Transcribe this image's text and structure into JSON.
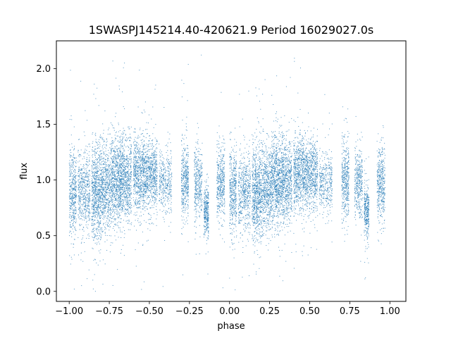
{
  "chart_data": {
    "type": "scatter",
    "title": "1SWASPJ145214.40-420621.9 Period 16029027.0s",
    "xlabel": "phase",
    "ylabel": "flux",
    "xlim": [
      -1.08,
      1.1
    ],
    "ylim": [
      -0.09,
      2.25
    ],
    "x_ticks": [
      -1.0,
      -0.75,
      -0.5,
      -0.25,
      0.0,
      0.25,
      0.5,
      0.75,
      1.0
    ],
    "x_tick_labels": [
      "−1.00",
      "−0.75",
      "−0.50",
      "−0.25",
      "0.00",
      "0.25",
      "0.50",
      "0.75",
      "1.00"
    ],
    "y_ticks": [
      0.0,
      0.5,
      1.0,
      1.5,
      2.0
    ],
    "y_tick_labels": [
      "0.0",
      "0.5",
      "1.0",
      "1.5",
      "2.0"
    ],
    "grid": false,
    "marker_color": "#1f77b4",
    "series": [
      {
        "x_range": [
          -1.0,
          1.0
        ],
        "y_range": [
          0.0,
          2.15
        ],
        "point_count_approx": 14000,
        "mirrored_about_phase_zero_shift": 1.0,
        "phase_clusters": [
          {
            "phase_start": -1.0,
            "phase_end": -0.955,
            "flux_center": 0.9,
            "flux_spread": 0.19,
            "weight": 0.8
          },
          {
            "phase_start": -0.945,
            "phase_end": -0.87,
            "flux_center": 0.9,
            "flux_spread": 0.18,
            "weight": 1.0
          },
          {
            "phase_start": -0.86,
            "phase_end": -0.8,
            "flux_center": 0.88,
            "flux_spread": 0.22,
            "weight": 1.4
          },
          {
            "phase_start": -0.8,
            "phase_end": -0.74,
            "flux_center": 0.93,
            "flux_spread": 0.2,
            "weight": 1.1
          },
          {
            "phase_start": -0.74,
            "phase_end": -0.66,
            "flux_center": 1.0,
            "flux_spread": 0.2,
            "weight": 1.8
          },
          {
            "phase_start": -0.66,
            "phase_end": -0.61,
            "flux_center": 0.98,
            "flux_spread": 0.18,
            "weight": 0.9
          },
          {
            "phase_start": -0.6,
            "phase_end": -0.53,
            "flux_center": 1.06,
            "flux_spread": 0.17,
            "weight": 1.3
          },
          {
            "phase_start": -0.53,
            "phase_end": -0.45,
            "flux_center": 1.05,
            "flux_spread": 0.16,
            "weight": 1.3
          },
          {
            "phase_start": -0.44,
            "phase_end": -0.36,
            "flux_center": 0.98,
            "flux_spread": 0.14,
            "weight": 0.7
          },
          {
            "phase_start": -0.3,
            "phase_end": -0.255,
            "flux_center": 1.0,
            "flux_spread": 0.18,
            "weight": 0.8
          },
          {
            "phase_start": -0.22,
            "phase_end": -0.17,
            "flux_center": 0.97,
            "flux_spread": 0.16,
            "weight": 0.7
          },
          {
            "phase_start": -0.16,
            "phase_end": -0.13,
            "flux_center": 0.72,
            "flux_spread": 0.12,
            "weight": 0.6
          },
          {
            "phase_start": -0.08,
            "phase_end": -0.03,
            "flux_center": 0.97,
            "flux_spread": 0.17,
            "weight": 0.8
          }
        ]
      }
    ]
  }
}
